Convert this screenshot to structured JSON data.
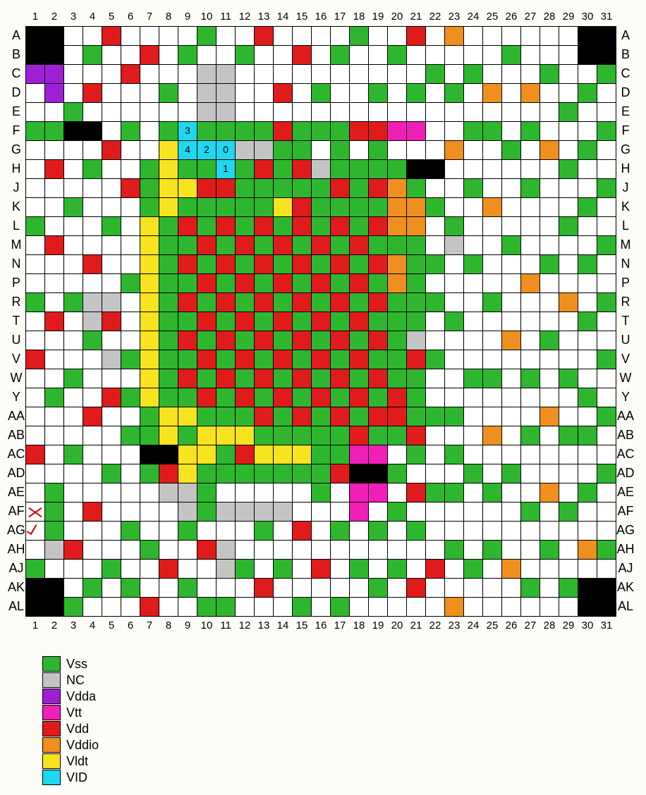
{
  "cell_size": 27,
  "colors": {
    "Vss": "#2fb62f",
    "NC": "#c4c4c4",
    "Vdda": "#9f1fd7",
    "Vtt": "#ef1fb7",
    "Vdd": "#e01b1b",
    "Vddio": "#ef8f1f",
    "Vldt": "#f7e31f",
    "VID": "#1fd7ef",
    "black": "#000000",
    "empty": "#ffffff"
  },
  "columns": [
    "1",
    "2",
    "3",
    "4",
    "5",
    "6",
    "7",
    "8",
    "9",
    "10",
    "11",
    "12",
    "13",
    "14",
    "15",
    "16",
    "17",
    "18",
    "19",
    "20",
    "21",
    "22",
    "23",
    "24",
    "25",
    "26",
    "27",
    "28",
    "29",
    "30",
    "31"
  ],
  "rows": [
    "A",
    "B",
    "C",
    "D",
    "E",
    "F",
    "G",
    "H",
    "J",
    "K",
    "L",
    "M",
    "N",
    "P",
    "R",
    "T",
    "U",
    "V",
    "W",
    "Y",
    "AA",
    "AB",
    "AC",
    "AD",
    "AE",
    "AF",
    "AG",
    "AH",
    "AJ",
    "AK",
    "AL"
  ],
  "legend": [
    {
      "key": "Vss",
      "label": "Vss"
    },
    {
      "key": "NC",
      "label": "NC"
    },
    {
      "key": "Vdda",
      "label": "Vdda"
    },
    {
      "key": "Vtt",
      "label": "Vtt"
    },
    {
      "key": "Vdd",
      "label": "Vdd"
    },
    {
      "key": "Vddio",
      "label": "Vddio"
    },
    {
      "key": "Vldt",
      "label": "Vldt"
    },
    {
      "key": "VID",
      "label": "VID"
    }
  ],
  "marks": {
    "AF,1": "x",
    "AG,1": "v"
  },
  "vid_numbers": {
    "F,9": "3",
    "G,9": "4",
    "G,10": "2",
    "G,11": "0",
    "H,11": "1"
  },
  "cells": {
    "A": {
      "1": "black",
      "2": "black",
      "5": "Vdd",
      "10": "Vss",
      "13": "Vdd",
      "18": "Vss",
      "21": "Vdd",
      "23": "Vddio",
      "30": "black",
      "31": "black"
    },
    "B": {
      "1": "black",
      "2": "black",
      "4": "Vss",
      "7": "Vdd",
      "9": "Vss",
      "12": "Vss",
      "15": "Vdd",
      "17": "Vss",
      "20": "Vss",
      "26": "Vss",
      "30": "black",
      "31": "black"
    },
    "C": {
      "1": "Vdda",
      "2": "Vdda",
      "6": "Vdd",
      "10": "NC",
      "11": "NC",
      "22": "Vss",
      "24": "Vss",
      "28": "Vss",
      "31": "Vss"
    },
    "D": {
      "2": "Vdda",
      "4": "Vdd",
      "8": "Vss",
      "10": "NC",
      "11": "NC",
      "14": "Vdd",
      "16": "Vss",
      "19": "Vss",
      "21": "Vss",
      "23": "Vss",
      "25": "Vddio",
      "27": "Vddio",
      "30": "Vss"
    },
    "E": {
      "3": "Vss",
      "10": "NC",
      "11": "NC",
      "29": "Vss"
    },
    "F": {
      "1": "Vss",
      "2": "Vss",
      "3": "black",
      "4": "black",
      "6": "Vss",
      "8": "Vss",
      "9": "VID",
      "10": "Vss",
      "11": "Vss",
      "12": "Vss",
      "13": "Vss",
      "14": "Vdd",
      "15": "Vss",
      "16": "Vss",
      "17": "Vss",
      "18": "Vdd",
      "19": "Vdd",
      "20": "Vtt",
      "21": "Vtt",
      "24": "Vss",
      "25": "Vss",
      "27": "Vss",
      "31": "Vss"
    },
    "G": {
      "5": "Vdd",
      "8": "Vldt",
      "9": "VID",
      "10": "VID",
      "11": "VID",
      "12": "NC",
      "13": "NC",
      "14": "Vss",
      "15": "Vss",
      "17": "Vss",
      "19": "Vss",
      "23": "Vddio",
      "26": "Vss",
      "28": "Vddio",
      "30": "Vss"
    },
    "H": {
      "2": "Vdd",
      "4": "Vss",
      "7": "Vss",
      "8": "Vldt",
      "9": "Vss",
      "10": "Vss",
      "11": "VID",
      "12": "Vss",
      "13": "Vdd",
      "14": "Vss",
      "15": "Vdd",
      "16": "NC",
      "17": "Vss",
      "18": "Vss",
      "19": "Vss",
      "20": "Vss",
      "21": "black",
      "22": "black",
      "29": "Vss"
    },
    "J": {
      "6": "Vdd",
      "7": "Vss",
      "8": "Vldt",
      "9": "Vldt",
      "10": "Vdd",
      "11": "Vdd",
      "12": "Vss",
      "13": "Vss",
      "14": "Vss",
      "15": "Vss",
      "16": "Vss",
      "17": "Vdd",
      "18": "Vss",
      "19": "Vdd",
      "20": "Vddio",
      "21": "Vss",
      "24": "Vss",
      "27": "Vss",
      "31": "Vss"
    },
    "K": {
      "3": "Vss",
      "7": "Vss",
      "8": "Vldt",
      "9": "Vss",
      "10": "Vss",
      "11": "Vss",
      "12": "Vss",
      "13": "Vss",
      "14": "Vldt",
      "15": "Vdd",
      "16": "Vss",
      "17": "Vss",
      "18": "Vss",
      "19": "Vss",
      "20": "Vddio",
      "21": "Vddio",
      "22": "Vss",
      "25": "Vddio",
      "30": "Vss"
    },
    "L": {
      "1": "Vss",
      "5": "Vss",
      "7": "Vldt",
      "8": "Vss",
      "9": "Vdd",
      "10": "Vss",
      "11": "Vdd",
      "12": "Vss",
      "13": "Vdd",
      "14": "Vss",
      "15": "Vdd",
      "16": "Vss",
      "17": "Vdd",
      "18": "Vss",
      "19": "Vdd",
      "20": "Vddio",
      "21": "Vddio",
      "23": "Vss",
      "29": "Vss"
    },
    "M": {
      "2": "Vdd",
      "7": "Vldt",
      "8": "Vss",
      "9": "Vss",
      "10": "Vdd",
      "11": "Vss",
      "12": "Vdd",
      "13": "Vss",
      "14": "Vdd",
      "15": "Vss",
      "16": "Vdd",
      "17": "Vss",
      "18": "Vdd",
      "19": "Vss",
      "20": "Vss",
      "21": "Vss",
      "23": "NC",
      "26": "Vss",
      "31": "Vss"
    },
    "N": {
      "4": "Vdd",
      "7": "Vldt",
      "8": "Vss",
      "9": "Vdd",
      "10": "Vss",
      "11": "Vdd",
      "12": "Vss",
      "13": "Vdd",
      "14": "Vss",
      "15": "Vdd",
      "16": "Vss",
      "17": "Vdd",
      "18": "Vss",
      "19": "Vdd",
      "20": "Vddio",
      "21": "Vss",
      "22": "Vss",
      "24": "Vss",
      "28": "Vss",
      "30": "Vss"
    },
    "P": {
      "6": "Vss",
      "7": "Vldt",
      "8": "Vss",
      "9": "Vss",
      "10": "Vdd",
      "11": "Vss",
      "12": "Vdd",
      "13": "Vss",
      "14": "Vdd",
      "15": "Vss",
      "16": "Vdd",
      "17": "Vss",
      "18": "Vdd",
      "19": "Vss",
      "20": "Vddio",
      "21": "Vss",
      "27": "Vddio"
    },
    "R": {
      "1": "Vss",
      "3": "Vss",
      "4": "NC",
      "5": "NC",
      "7": "Vldt",
      "8": "Vss",
      "9": "Vdd",
      "10": "Vss",
      "11": "Vdd",
      "12": "Vss",
      "13": "Vdd",
      "14": "Vss",
      "15": "Vdd",
      "16": "Vss",
      "17": "Vdd",
      "18": "Vss",
      "19": "Vdd",
      "20": "Vss",
      "21": "Vss",
      "22": "Vss",
      "25": "Vss",
      "29": "Vddio",
      "31": "Vss"
    },
    "T": {
      "2": "Vdd",
      "4": "NC",
      "5": "Vdd",
      "7": "Vldt",
      "8": "Vss",
      "9": "Vss",
      "10": "Vdd",
      "11": "Vss",
      "12": "Vdd",
      "13": "Vss",
      "14": "Vdd",
      "15": "Vss",
      "16": "Vdd",
      "17": "Vss",
      "18": "Vdd",
      "19": "Vss",
      "20": "Vss",
      "21": "Vss",
      "23": "Vss",
      "30": "Vss"
    },
    "U": {
      "4": "Vss",
      "7": "Vldt",
      "8": "Vss",
      "9": "Vdd",
      "10": "Vss",
      "11": "Vdd",
      "12": "Vss",
      "13": "Vdd",
      "14": "Vss",
      "15": "Vdd",
      "16": "Vss",
      "17": "Vdd",
      "18": "Vss",
      "19": "Vdd",
      "20": "Vss",
      "21": "NC",
      "26": "Vddio",
      "28": "Vss"
    },
    "V": {
      "1": "Vdd",
      "5": "NC",
      "6": "Vss",
      "7": "Vldt",
      "8": "Vss",
      "9": "Vss",
      "10": "Vdd",
      "11": "Vss",
      "12": "Vdd",
      "13": "Vss",
      "14": "Vdd",
      "15": "Vss",
      "16": "Vdd",
      "17": "Vss",
      "18": "Vdd",
      "19": "Vss",
      "20": "Vss",
      "21": "Vdd",
      "22": "Vss",
      "31": "Vss"
    },
    "W": {
      "3": "Vss",
      "7": "Vldt",
      "8": "Vss",
      "9": "Vdd",
      "10": "Vss",
      "11": "Vdd",
      "12": "Vss",
      "13": "Vdd",
      "14": "Vss",
      "15": "Vdd",
      "16": "Vss",
      "17": "Vdd",
      "18": "Vss",
      "19": "Vdd",
      "20": "Vss",
      "21": "Vss",
      "24": "Vss",
      "25": "Vss",
      "27": "Vss",
      "29": "Vss"
    },
    "Y": {
      "2": "Vss",
      "5": "Vdd",
      "6": "Vss",
      "7": "Vldt",
      "8": "Vss",
      "9": "Vss",
      "10": "Vdd",
      "11": "Vss",
      "12": "Vdd",
      "13": "Vss",
      "14": "Vdd",
      "15": "Vss",
      "16": "Vdd",
      "17": "Vss",
      "18": "Vdd",
      "19": "Vss",
      "20": "Vdd",
      "21": "Vss",
      "30": "Vss"
    },
    "AA": {
      "4": "Vdd",
      "7": "Vss",
      "8": "Vldt",
      "9": "Vldt",
      "10": "Vss",
      "11": "Vss",
      "12": "Vss",
      "13": "Vdd",
      "14": "Vss",
      "15": "Vdd",
      "16": "Vss",
      "17": "Vdd",
      "18": "Vss",
      "19": "Vdd",
      "20": "Vdd",
      "21": "Vss",
      "22": "Vss",
      "23": "Vss",
      "28": "Vddio",
      "31": "Vss"
    },
    "AB": {
      "6": "Vss",
      "7": "Vss",
      "8": "Vldt",
      "9": "Vss",
      "10": "Vldt",
      "11": "Vldt",
      "12": "Vldt",
      "13": "Vss",
      "14": "Vss",
      "15": "Vss",
      "16": "Vss",
      "17": "Vss",
      "18": "Vdd",
      "19": "Vss",
      "20": "Vss",
      "21": "Vdd",
      "25": "Vddio",
      "27": "Vss",
      "29": "Vss",
      "30": "Vss"
    },
    "AC": {
      "1": "Vdd",
      "3": "Vss",
      "7": "black",
      "8": "black",
      "9": "Vldt",
      "10": "Vldt",
      "11": "Vss",
      "12": "Vdd",
      "13": "Vldt",
      "14": "Vldt",
      "15": "Vldt",
      "16": "Vss",
      "17": "Vss",
      "18": "Vtt",
      "19": "Vtt",
      "21": "Vss",
      "23": "Vss"
    },
    "AD": {
      "5": "Vss",
      "7": "Vss",
      "8": "Vdd",
      "9": "Vldt",
      "10": "Vss",
      "11": "Vss",
      "12": "Vss",
      "13": "Vss",
      "14": "Vss",
      "15": "Vss",
      "16": "Vss",
      "17": "Vdd",
      "18": "black",
      "19": "black",
      "20": "Vss",
      "24": "Vss",
      "26": "Vss",
      "31": "Vss"
    },
    "AE": {
      "2": "Vss",
      "8": "NC",
      "9": "NC",
      "10": "Vss",
      "16": "Vss",
      "18": "Vtt",
      "19": "Vtt",
      "21": "Vdd",
      "22": "Vss",
      "23": "Vss",
      "25": "Vss",
      "28": "Vddio",
      "30": "Vss"
    },
    "AF": {
      "2": "Vss",
      "4": "Vdd",
      "9": "NC",
      "10": "Vss",
      "11": "NC",
      "12": "NC",
      "13": "NC",
      "14": "NC",
      "18": "Vtt",
      "20": "Vss",
      "27": "Vss",
      "29": "Vss"
    },
    "AG": {
      "2": "Vss",
      "6": "Vss",
      "9": "Vss",
      "13": "Vss",
      "15": "Vdd",
      "17": "Vss",
      "19": "Vss",
      "21": "Vss"
    },
    "AH": {
      "2": "NC",
      "3": "Vdd",
      "7": "Vss",
      "10": "Vdd",
      "11": "NC",
      "23": "Vss",
      "25": "Vss",
      "28": "Vss",
      "30": "Vddio",
      "31": "Vss"
    },
    "AJ": {
      "1": "Vss",
      "5": "Vss",
      "8": "Vdd",
      "11": "NC",
      "12": "Vss",
      "14": "Vss",
      "16": "Vdd",
      "18": "Vss",
      "20": "Vss",
      "22": "Vdd",
      "24": "Vss",
      "26": "Vddio"
    },
    "AK": {
      "1": "black",
      "2": "black",
      "4": "Vss",
      "6": "Vss",
      "9": "Vss",
      "13": "Vdd",
      "19": "Vss",
      "21": "Vdd",
      "27": "Vss",
      "29": "Vss",
      "30": "black",
      "31": "black"
    },
    "AL": {
      "1": "black",
      "2": "black",
      "3": "Vss",
      "7": "Vdd",
      "10": "Vss",
      "11": "Vss",
      "15": "Vss",
      "17": "Vss",
      "23": "Vddio",
      "30": "black",
      "31": "black"
    }
  }
}
